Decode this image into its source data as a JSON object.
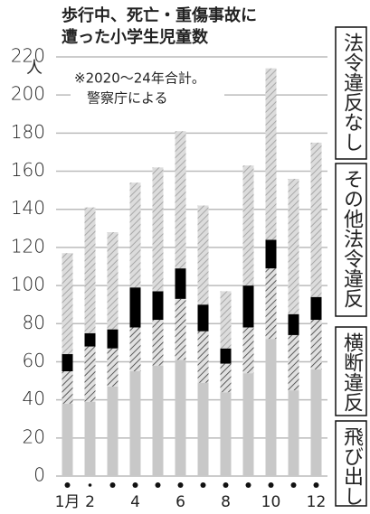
{
  "chart_data": {
    "type": "bar",
    "stacked": true,
    "title": [
      "歩行中、死亡・重傷事故に",
      "遭った小学生児童数"
    ],
    "unit": "人",
    "annotation": [
      "※2020～24年合計。",
      "警察庁による"
    ],
    "categories": [
      "1月",
      "2",
      null,
      "4",
      null,
      "6",
      null,
      "8",
      null,
      "10",
      null,
      "12"
    ],
    "series": [
      {
        "name": "飛び出し",
        "color": "#c8c8c8",
        "hatch": false,
        "values": [
          38,
          39,
          47,
          55,
          58,
          61,
          49,
          44,
          54,
          72,
          45,
          56
        ]
      },
      {
        "name": "横断違反",
        "color": "#3a3a3a",
        "hatch": true,
        "values": [
          17,
          29,
          20,
          23,
          24,
          32,
          27,
          15,
          24,
          37,
          29,
          26
        ]
      },
      {
        "name": "その他法令違反",
        "color": "#000000",
        "hatch": false,
        "values": [
          9,
          7,
          10,
          21,
          15,
          16,
          14,
          8,
          22,
          15,
          11,
          12
        ]
      },
      {
        "name": "法令違反なし",
        "color": "#a8a8a8",
        "hatch": true,
        "values": [
          53,
          66,
          51,
          55,
          65,
          72,
          52,
          30,
          63,
          90,
          71,
          81
        ]
      }
    ],
    "ylim": [
      0,
      220
    ],
    "yticks": [
      0,
      20,
      40,
      60,
      80,
      100,
      120,
      140,
      160,
      180,
      200,
      220
    ],
    "grid": true
  }
}
